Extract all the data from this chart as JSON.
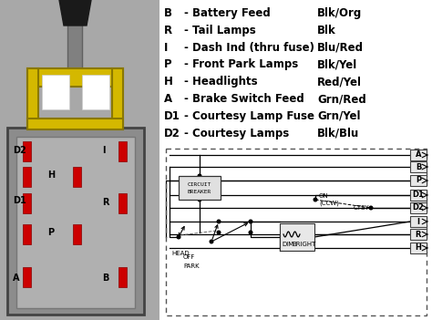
{
  "legend_entries": [
    [
      "B",
      "- Battery Feed",
      "Blk/Org"
    ],
    [
      "R",
      "- Tail Lamps",
      "Blk"
    ],
    [
      "I",
      "- Dash Ind (thru fuse)",
      "Blu/Red"
    ],
    [
      "P",
      "- Front Park Lamps",
      "Blk/Yel"
    ],
    [
      "H",
      "- Headlights",
      "Red/Yel"
    ],
    [
      "A",
      "- Brake Switch Feed",
      "Grn/Red"
    ],
    [
      "D1",
      "- Courtesy Lamp Fuse",
      "Grn/Yel"
    ],
    [
      "D2",
      "- Courtesy Lamps",
      "Blk/Blu"
    ]
  ],
  "circuit_labels_right": [
    "A",
    "B",
    "P",
    "D1",
    "D2",
    "I",
    "R",
    "H"
  ],
  "left_labels": [
    [
      "D2",
      14,
      165
    ],
    [
      "H",
      52,
      192
    ],
    [
      "D1",
      14,
      220
    ],
    [
      "P",
      52,
      255
    ],
    [
      "A",
      14,
      305
    ]
  ],
  "right_labels": [
    [
      "I",
      112,
      165
    ],
    [
      "R",
      112,
      222
    ],
    [
      "B",
      112,
      305
    ]
  ],
  "bg_color": "#a8a8a8",
  "white_color": "#ffffff",
  "yellow_color": "#d4b800",
  "gray_connector": "#8c8c8c",
  "gray_inner": "#b0b0b0",
  "red_terminal": "#cc0000"
}
